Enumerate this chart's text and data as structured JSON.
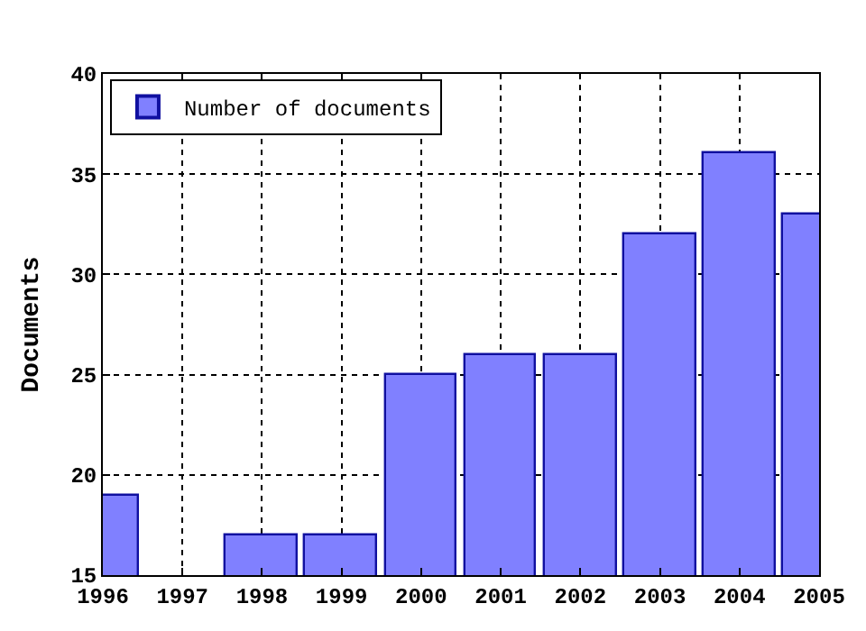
{
  "chart_data": {
    "type": "bar",
    "ylabel": "Documents",
    "x": [
      1996,
      1997,
      1998,
      1999,
      2000,
      2001,
      2002,
      2003,
      2004,
      2005
    ],
    "series": [
      {
        "name": "Number of documents",
        "color": "#8080ff",
        "values": [
          19,
          null,
          17,
          17,
          25,
          26,
          26,
          32,
          36,
          33
        ]
      }
    ],
    "xlim": [
      1996,
      2005
    ],
    "xticks": [
      1996,
      1997,
      1998,
      1999,
      2000,
      2001,
      2002,
      2003,
      2004,
      2005
    ],
    "ylim": [
      15,
      40
    ],
    "yticks": [
      15,
      20,
      25,
      30,
      35,
      40
    ],
    "grid": true,
    "legend": "top left"
  }
}
